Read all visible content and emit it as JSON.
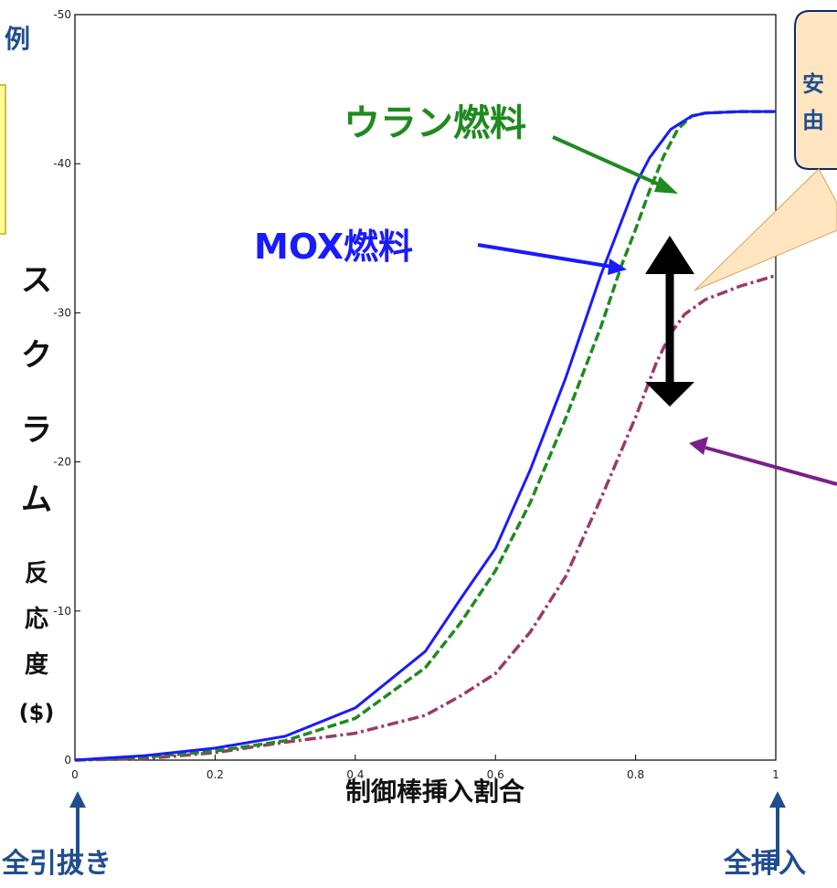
{
  "header": {
    "partial_title": "例"
  },
  "chart_data": {
    "type": "line",
    "title": "",
    "xlabel": "制御棒挿入割合",
    "ylabel_chars": [
      "ス",
      "ク",
      "ラ",
      "ム",
      "反",
      "応",
      "度",
      "($)"
    ],
    "xlim": [
      0,
      1
    ],
    "ylim": [
      0,
      -50
    ],
    "x_ticks": [
      "0",
      "0.2",
      "0.4",
      "0.6",
      "0.8",
      "1"
    ],
    "y_ticks": [
      "0",
      "-10",
      "-20",
      "-30",
      "-40",
      "-50"
    ],
    "grid": false,
    "series": [
      {
        "name": "MOX燃料",
        "color": "#1a1aff",
        "style": "solid",
        "x": [
          0,
          0.1,
          0.2,
          0.3,
          0.4,
          0.5,
          0.55,
          0.6,
          0.65,
          0.7,
          0.75,
          0.8,
          0.82,
          0.85,
          0.88,
          0.9,
          0.95,
          1.0
        ],
        "y": [
          0,
          -0.3,
          -0.8,
          -1.6,
          -3.5,
          -7.3,
          -10.8,
          -14.2,
          -19.5,
          -25.6,
          -32.5,
          -38.6,
          -40.4,
          -42.3,
          -43.2,
          -43.4,
          -43.5,
          -43.5
        ]
      },
      {
        "name": "ウラン燃料",
        "color": "#1f8a1f",
        "style": "dashed",
        "x": [
          0,
          0.1,
          0.2,
          0.3,
          0.4,
          0.5,
          0.55,
          0.6,
          0.65,
          0.7,
          0.75,
          0.78,
          0.8,
          0.82,
          0.84,
          0.86,
          0.88,
          0.9,
          0.95,
          1.0
        ],
        "y": [
          0,
          -0.2,
          -0.6,
          -1.3,
          -2.8,
          -6.2,
          -9.2,
          -12.7,
          -17.3,
          -22.9,
          -29.0,
          -33.2,
          -35.6,
          -38.2,
          -40.5,
          -42.3,
          -43.2,
          -43.4,
          -43.5,
          -43.5
        ]
      },
      {
        "name": "",
        "color": "#9b3a6a",
        "style": "dashdot",
        "x": [
          0,
          0.1,
          0.2,
          0.3,
          0.4,
          0.5,
          0.55,
          0.6,
          0.65,
          0.7,
          0.75,
          0.8,
          0.83,
          0.85,
          0.87,
          0.9,
          0.95,
          1.0
        ],
        "y": [
          0,
          -0.1,
          -0.5,
          -1.2,
          -1.8,
          -3.0,
          -4.3,
          -5.8,
          -8.6,
          -12.3,
          -17.5,
          -23.0,
          -26.7,
          -28.6,
          -29.9,
          -30.9,
          -31.8,
          -32.5
        ]
      }
    ],
    "annotations": {
      "uranium_label": "ウラン燃料",
      "mox_label": "MOX燃料",
      "left_arrow_label": "全引抜き",
      "right_arrow_label": "全挿入",
      "callout_text_lines": [
        "安",
        "由"
      ]
    },
    "colors": {
      "yellow_box": "#ffff99",
      "callout_fill": "#ffe6c0",
      "callout_border": "#0a2a6a",
      "purple_arrow": "#7a1f8a"
    }
  }
}
